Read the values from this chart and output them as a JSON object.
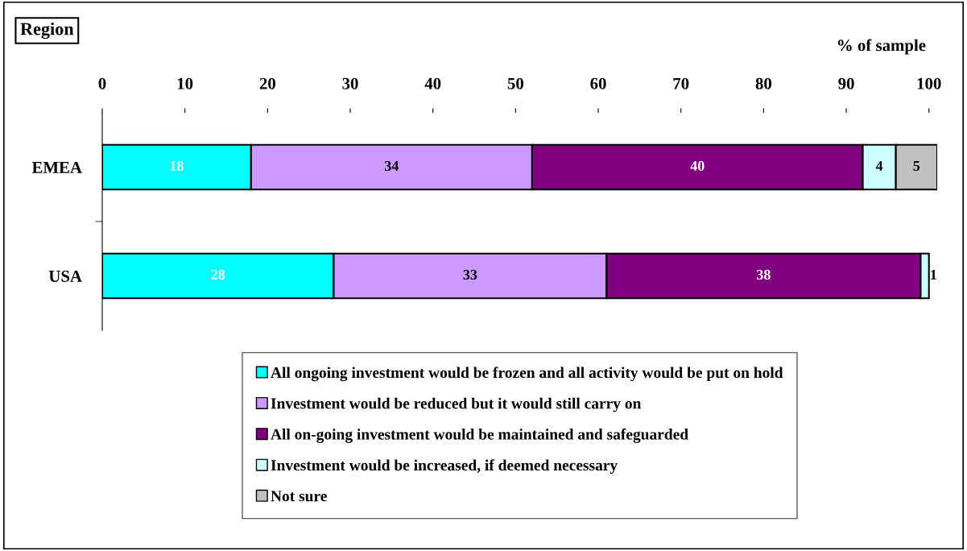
{
  "chart_data": {
    "type": "bar",
    "orientation": "horizontal",
    "stacked": true,
    "xlabel": "% of sample",
    "annotations": [
      "Region"
    ],
    "categories": [
      "EMEA",
      "USA"
    ],
    "series": [
      {
        "name": "All ongoing investment would be frozen and all activity would be put on hold",
        "color": "#00ffff",
        "values": [
          18,
          28
        ]
      },
      {
        "name": "Investment would be reduced but it would still carry on",
        "color": "#cc99ff",
        "values": [
          34,
          33
        ]
      },
      {
        "name": "All on-going investment would be maintained and safeguarded",
        "color": "#800080",
        "values": [
          40,
          38
        ]
      },
      {
        "name": "Investment would be increased, if deemed necessary",
        "color": "#ccffff",
        "values": [
          4,
          1
        ]
      },
      {
        "name": "Not sure",
        "color": "#c0c0c0",
        "values": [
          5,
          null
        ]
      }
    ],
    "xlim": [
      0,
      101
    ],
    "xticks": [
      0,
      10,
      20,
      30,
      40,
      50,
      60,
      70,
      80,
      90,
      100
    ],
    "data_labels": true,
    "grid": false,
    "legend": "bottom"
  }
}
